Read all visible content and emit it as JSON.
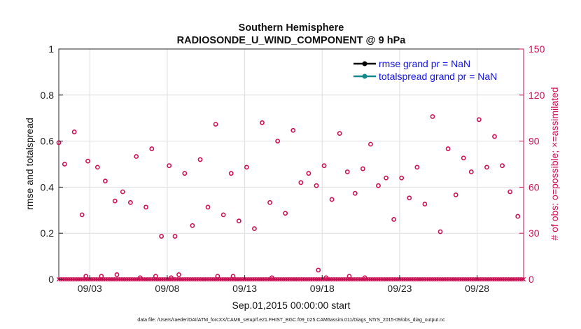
{
  "chart_data": {
    "type": "scatter",
    "title": "Southern Hemisphere",
    "subtitle": "RADIOSONDE_U_WIND_COMPONENT @ 9 hPa",
    "xlabel": "Sep.01,2015 00:00:00 start",
    "ylabel_left": "rmse and totalspread",
    "ylabel_right": "# of obs: o=possible; ×=assimilated",
    "footnote": "data file: /Users/raeder/DAI/ATM_forcXX/CAM6_setup/f.e21.FHIST_BGC.f09_025.CAM6assim.011/Diags_NTrS_2015-09/obs_diag_output.nc",
    "xlim": [
      0,
      30
    ],
    "ylim_left": [
      0,
      1
    ],
    "ylim_right": [
      0,
      150
    ],
    "grid": true,
    "x_tick_positions": [
      2,
      7,
      12,
      17,
      22,
      27
    ],
    "x_tick_labels": [
      "09/03",
      "09/08",
      "09/13",
      "09/18",
      "09/23",
      "09/28"
    ],
    "y_left_ticks": [
      0,
      0.2,
      0.4,
      0.6,
      0.8,
      1
    ],
    "y_left_tick_labels": [
      "0",
      "0.2",
      "0.4",
      "0.6",
      "0.8",
      "1"
    ],
    "y_right_ticks": [
      0,
      30,
      60,
      90,
      120,
      150
    ],
    "y_right_tick_labels": [
      "0",
      "30",
      "60",
      "90",
      "120",
      "150"
    ],
    "legend": {
      "position": "top-right",
      "entries": [
        "rmse grand pr = NaN",
        "totalspread grand pr = NaN"
      ]
    },
    "series": [
      {
        "name": "obs possible (high)",
        "axis": "right",
        "marker": "circle",
        "color": "#cc1155",
        "x": [
          0,
          0.375,
          1.0,
          1.5,
          1.875,
          2.5,
          3.0,
          3.625,
          4.125,
          4.625,
          5.0,
          5.625,
          6.0,
          6.625,
          7.125,
          7.5,
          8.125,
          8.625,
          9.125,
          9.625,
          10.125,
          10.625,
          11.125,
          11.625,
          12.125,
          12.625,
          13.125,
          13.625,
          14.125,
          14.625,
          15.125,
          15.625,
          16.125,
          16.625,
          17.125,
          17.625,
          18.125,
          18.625,
          19.125,
          19.625,
          20.125,
          20.625,
          21.125,
          21.625,
          22.125,
          22.625,
          23.125,
          23.625,
          24.125,
          24.625,
          25.125,
          25.625,
          26.125,
          26.625,
          27.125,
          27.625,
          28.125,
          28.625,
          29.125,
          29.625
        ],
        "y": [
          89,
          75,
          96,
          42,
          77,
          73,
          64,
          51,
          57,
          50,
          80,
          47,
          85,
          28,
          74,
          28,
          69,
          35,
          78,
          47,
          101,
          42,
          69,
          38,
          73,
          33,
          102,
          50,
          90,
          43,
          97,
          63,
          69,
          61,
          74,
          52,
          95,
          70,
          56,
          72,
          88,
          61,
          66,
          39,
          66,
          53,
          73,
          49,
          106,
          31,
          85,
          55,
          79,
          70,
          104,
          73,
          93,
          74,
          57,
          41
        ]
      },
      {
        "name": "obs possible (low)",
        "axis": "right",
        "marker": "circle",
        "color": "#cc1155",
        "x": [
          1.75,
          2.75,
          3.75,
          5.25,
          6.25,
          7.25,
          7.75,
          10.25,
          11.25,
          13.75,
          16.75,
          17.25,
          18.75,
          19.75
        ],
        "y": [
          2,
          2,
          3,
          1,
          2,
          1,
          3,
          2,
          2,
          1,
          6,
          1,
          2,
          1
        ]
      },
      {
        "name": "obs assimilated",
        "axis": "right",
        "marker": "x",
        "color": "#cc1155",
        "x_range": [
          0,
          30
        ],
        "step": 0.125,
        "y": 0
      },
      {
        "name": "rmse grand pr = NaN",
        "axis": "left",
        "marker": "dot-line",
        "color": "#000000",
        "values": []
      },
      {
        "name": "totalspread grand pr = NaN",
        "axis": "left",
        "marker": "dot-line",
        "color": "#138a8a",
        "values": []
      }
    ]
  }
}
